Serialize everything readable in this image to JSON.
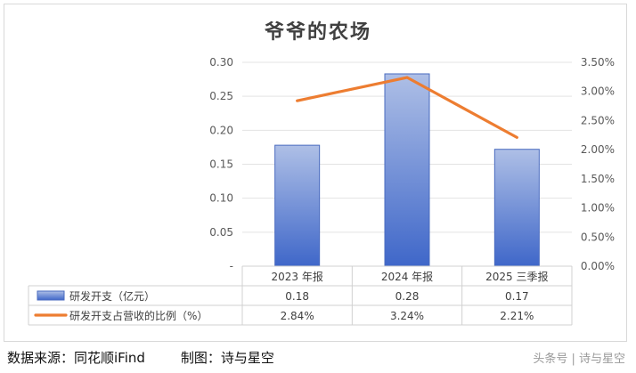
{
  "chart_data": {
    "type": "bar",
    "title": "爷爷的农场",
    "categories": [
      "2023 年报",
      "2024 年报",
      "2025 三季报"
    ],
    "series": [
      {
        "name": "研发开支（亿元）",
        "kind": "bar",
        "axis": "left",
        "values": [
          0.178,
          0.283,
          0.172
        ],
        "labels": [
          "0.18",
          "0.28",
          "0.17"
        ]
      },
      {
        "name": "研发开支占营收的比例（%）",
        "kind": "line",
        "axis": "right",
        "values": [
          2.84,
          3.24,
          2.21
        ],
        "labels": [
          "2.84%",
          "3.24%",
          "2.21%"
        ]
      }
    ],
    "y_left": {
      "ylim": [
        0,
        0.3
      ],
      "ticks": [
        "-",
        "0.05",
        "0.10",
        "0.15",
        "0.20",
        "0.25",
        "0.30"
      ]
    },
    "y_right": {
      "ylim": [
        0,
        3.5
      ],
      "ticks": [
        "0.00%",
        "0.50%",
        "1.00%",
        "1.50%",
        "2.00%",
        "2.50%",
        "3.00%",
        "3.50%"
      ]
    },
    "grid": true,
    "legend": "data-table",
    "colors": {
      "bar_top": "#aebfe6",
      "bar_bottom": "#3f67c9",
      "bar_border": "#4a6bbf",
      "line": "#ed7d31"
    }
  },
  "footer": {
    "source": "数据来源：同花顺iFind",
    "author": "制图：诗与星空"
  },
  "watermark": "头条号 | 诗与星空"
}
